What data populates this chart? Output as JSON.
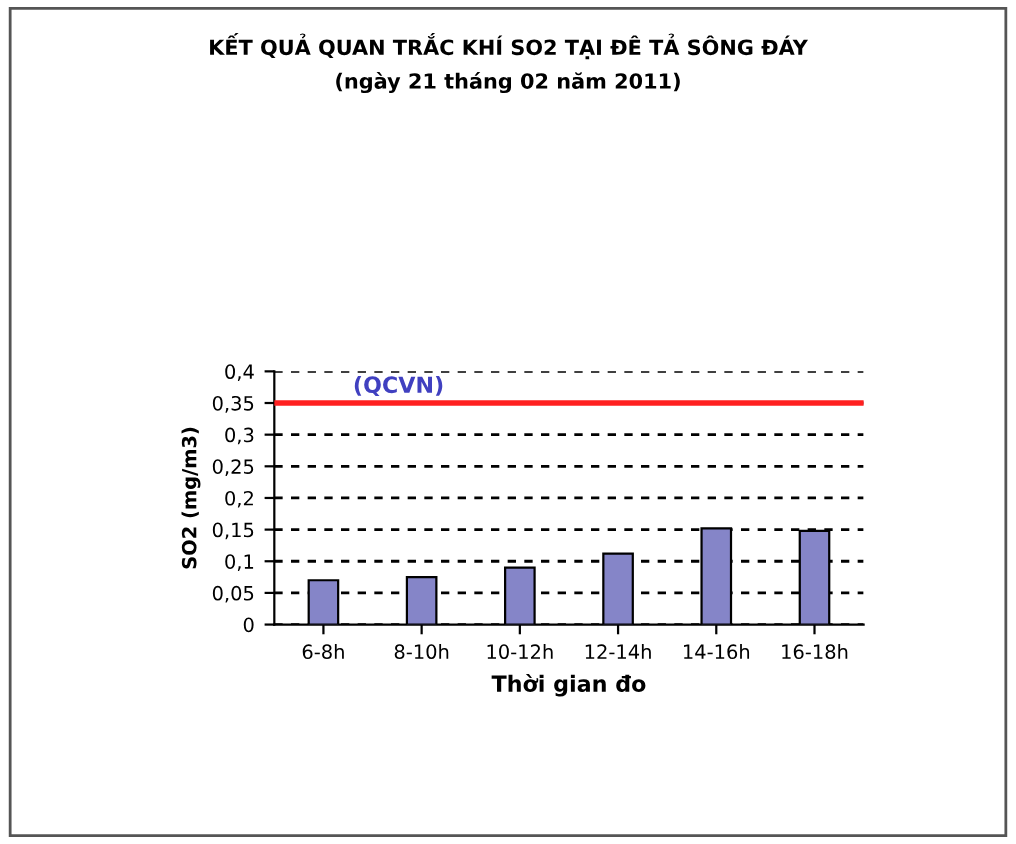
{
  "chart_data": {
    "type": "bar",
    "title": "KẾT QUẢ QUAN TRẮC KHÍ SO2 TẠI ĐÊ TẢ SÔNG ĐÁY",
    "subtitle": "(ngày 21 tháng 02 năm 2011)",
    "xlabel": "Thời gian đo",
    "ylabel": "SO2 (mg/m3)",
    "categories": [
      "6-8h",
      "8-10h",
      "10-12h",
      "12-14h",
      "14-16h",
      "16-18h"
    ],
    "values": [
      0.07,
      0.075,
      0.09,
      0.112,
      0.152,
      0.148
    ],
    "color": "#8585c8",
    "ylim": [
      0,
      0.4
    ],
    "yticks": [
      {
        "value": 0,
        "label": "0"
      },
      {
        "value": 0.05,
        "label": "0,05"
      },
      {
        "value": 0.1,
        "label": "0,1"
      },
      {
        "value": 0.15,
        "label": "0,15"
      },
      {
        "value": 0.2,
        "label": "0,2"
      },
      {
        "value": 0.25,
        "label": "0,25"
      },
      {
        "value": 0.3,
        "label": "0,3"
      },
      {
        "value": 0.35,
        "label": "0,35"
      },
      {
        "value": 0.4,
        "label": "0,4"
      }
    ],
    "grid": "y",
    "ref_lines": [
      {
        "axis": "y",
        "value": 0.35,
        "label": "(QCVN)",
        "color": "#ff2020"
      }
    ]
  }
}
